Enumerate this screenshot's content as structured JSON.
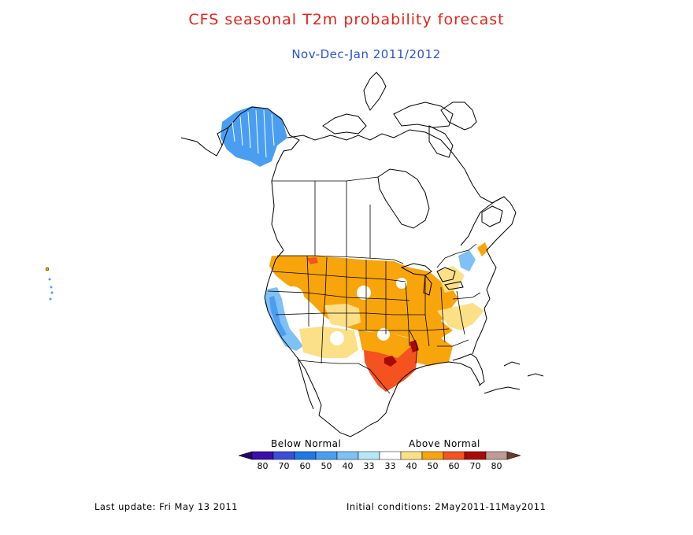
{
  "header": {
    "title": "CFS seasonal T2m probability forecast",
    "subtitle": "Nov-Dec-Jan 2011/2012"
  },
  "legend": {
    "below_label": "Below Normal",
    "above_label": "Above Normal",
    "bins": [
      {
        "label": "80",
        "color": "#3b0fa8"
      },
      {
        "label": "70",
        "color": "#3a4fd6"
      },
      {
        "label": "60",
        "color": "#1e78e6"
      },
      {
        "label": "50",
        "color": "#4a9ef2"
      },
      {
        "label": "40",
        "color": "#7fc0f5"
      },
      {
        "label": "33",
        "color": "#b4e8f7"
      },
      {
        "label": "33",
        "color": "#ffffff"
      },
      {
        "label": "40",
        "color": "#fce088"
      },
      {
        "label": "50",
        "color": "#f8a50c"
      },
      {
        "label": "60",
        "color": "#f4521e"
      },
      {
        "label": "70",
        "color": "#a80a0a"
      },
      {
        "label": "80",
        "color": "#c09a94"
      }
    ],
    "cap_left_color": "#2a0070",
    "cap_right_color": "#6b3a2a"
  },
  "colors": {
    "title": "#e2231a",
    "subtitle": "#2a55c8"
  },
  "footer": {
    "last_update": "Last update: Fri May 13 2011",
    "initial_conditions": "Initial conditions: 2May2011-11May2011"
  }
}
